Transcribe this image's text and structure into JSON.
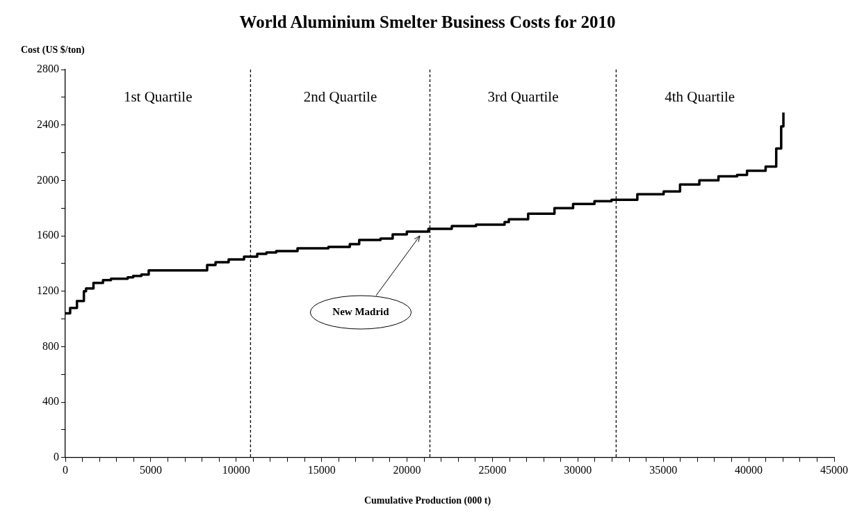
{
  "chart_data": {
    "type": "step",
    "title": "World Aluminium Smelter Business Costs for 2010",
    "xlabel": "Cumulative Production (000 t)",
    "ylabel": "Cost (US $/ton)",
    "x": [
      0,
      280,
      680,
      1085,
      1210,
      1645,
      2205,
      2670,
      3650,
      3970,
      4450,
      4880,
      8300,
      8790,
      9560,
      10460,
      11230,
      11770,
      12340,
      13590,
      15400,
      16650,
      17200,
      18450,
      19160,
      19990,
      21250,
      22620,
      24040,
      25710,
      25960,
      27090,
      28630,
      29720,
      30970,
      31970,
      33480,
      35020,
      35980,
      37110,
      38230,
      39320,
      39900,
      40990,
      41610,
      41900,
      42030
    ],
    "series": [
      {
        "color": "#000000",
        "values": [
          1040,
          1080,
          1130,
          1200,
          1220,
          1260,
          1280,
          1290,
          1300,
          1310,
          1320,
          1350,
          1390,
          1410,
          1430,
          1450,
          1470,
          1480,
          1490,
          1510,
          1520,
          1540,
          1570,
          1580,
          1610,
          1630,
          1650,
          1670,
          1680,
          1700,
          1720,
          1760,
          1800,
          1830,
          1850,
          1860,
          1900,
          1920,
          1970,
          2000,
          2030,
          2040,
          2070,
          2100,
          2230,
          2390,
          2490
        ]
      }
    ],
    "xlim": [
      0,
      45000
    ],
    "ylim": [
      0,
      2800
    ],
    "xticks": [
      0,
      {
        "value": 1000,
        "label": null
      },
      {
        "value": 2000,
        "label": null
      },
      {
        "value": 3000,
        "label": null
      },
      {
        "value": 4000,
        "label": null
      },
      5000,
      {
        "value": 6000,
        "label": null
      },
      {
        "value": 7000,
        "label": null
      },
      {
        "value": 8000,
        "label": null
      },
      {
        "value": 9000,
        "label": null
      },
      10000,
      {
        "value": 11000,
        "label": null
      },
      {
        "value": 12000,
        "label": null
      },
      {
        "value": 13000,
        "label": null
      },
      {
        "value": 14000,
        "label": null
      },
      15000,
      {
        "value": 16000,
        "label": null
      },
      {
        "value": 17000,
        "label": null
      },
      {
        "value": 18000,
        "label": null
      },
      {
        "value": 19000,
        "label": null
      },
      20000,
      {
        "value": 21000,
        "label": null
      },
      {
        "value": 22000,
        "label": null
      },
      {
        "value": 23000,
        "label": null
      },
      {
        "value": 24000,
        "label": null
      },
      25000,
      {
        "value": 26000,
        "label": null
      },
      {
        "value": 27000,
        "label": null
      },
      {
        "value": 28000,
        "label": null
      },
      {
        "value": 29000,
        "label": null
      },
      30000,
      {
        "value": 31000,
        "label": null
      },
      {
        "value": 32000,
        "label": null
      },
      {
        "value": 33000,
        "label": null
      },
      {
        "value": 34000,
        "label": null
      },
      35000,
      {
        "value": 36000,
        "label": null
      },
      {
        "value": 37000,
        "label": null
      },
      {
        "value": 38000,
        "label": null
      },
      {
        "value": 39000,
        "label": null
      },
      40000,
      {
        "value": 41000,
        "label": null
      },
      {
        "value": 42000,
        "label": null
      },
      {
        "value": 43000,
        "label": null
      },
      {
        "value": 44000,
        "label": null
      },
      45000
    ],
    "yticks": [
      0,
      {
        "value": 200,
        "label": null
      },
      400,
      {
        "value": 600,
        "label": null
      },
      800,
      {
        "value": 1000,
        "label": null
      },
      1200,
      {
        "value": 1400,
        "label": null
      },
      1600,
      {
        "value": 1800,
        "label": null
      },
      2000,
      {
        "value": 2200,
        "label": null
      },
      2400,
      {
        "value": 2600,
        "label": null
      },
      2800
    ],
    "grid": false,
    "legend": false,
    "marker": "none",
    "line_style": "solid",
    "ref_lines": [
      {
        "axis": "x",
        "value": 10840,
        "line_style": "dashed",
        "color": "#000000"
      },
      {
        "axis": "x",
        "value": 21340,
        "line_style": "dashed",
        "color": "#000000"
      },
      {
        "axis": "x",
        "value": 32240,
        "line_style": "dashed",
        "color": "#000000"
      }
    ],
    "annotations": [
      "1st Quartile",
      "2nd Quartile",
      "3rd Quartile",
      "4th Quartile",
      {
        "text": "New Madrid",
        "x": 20750,
        "y": 1600
      }
    ]
  }
}
